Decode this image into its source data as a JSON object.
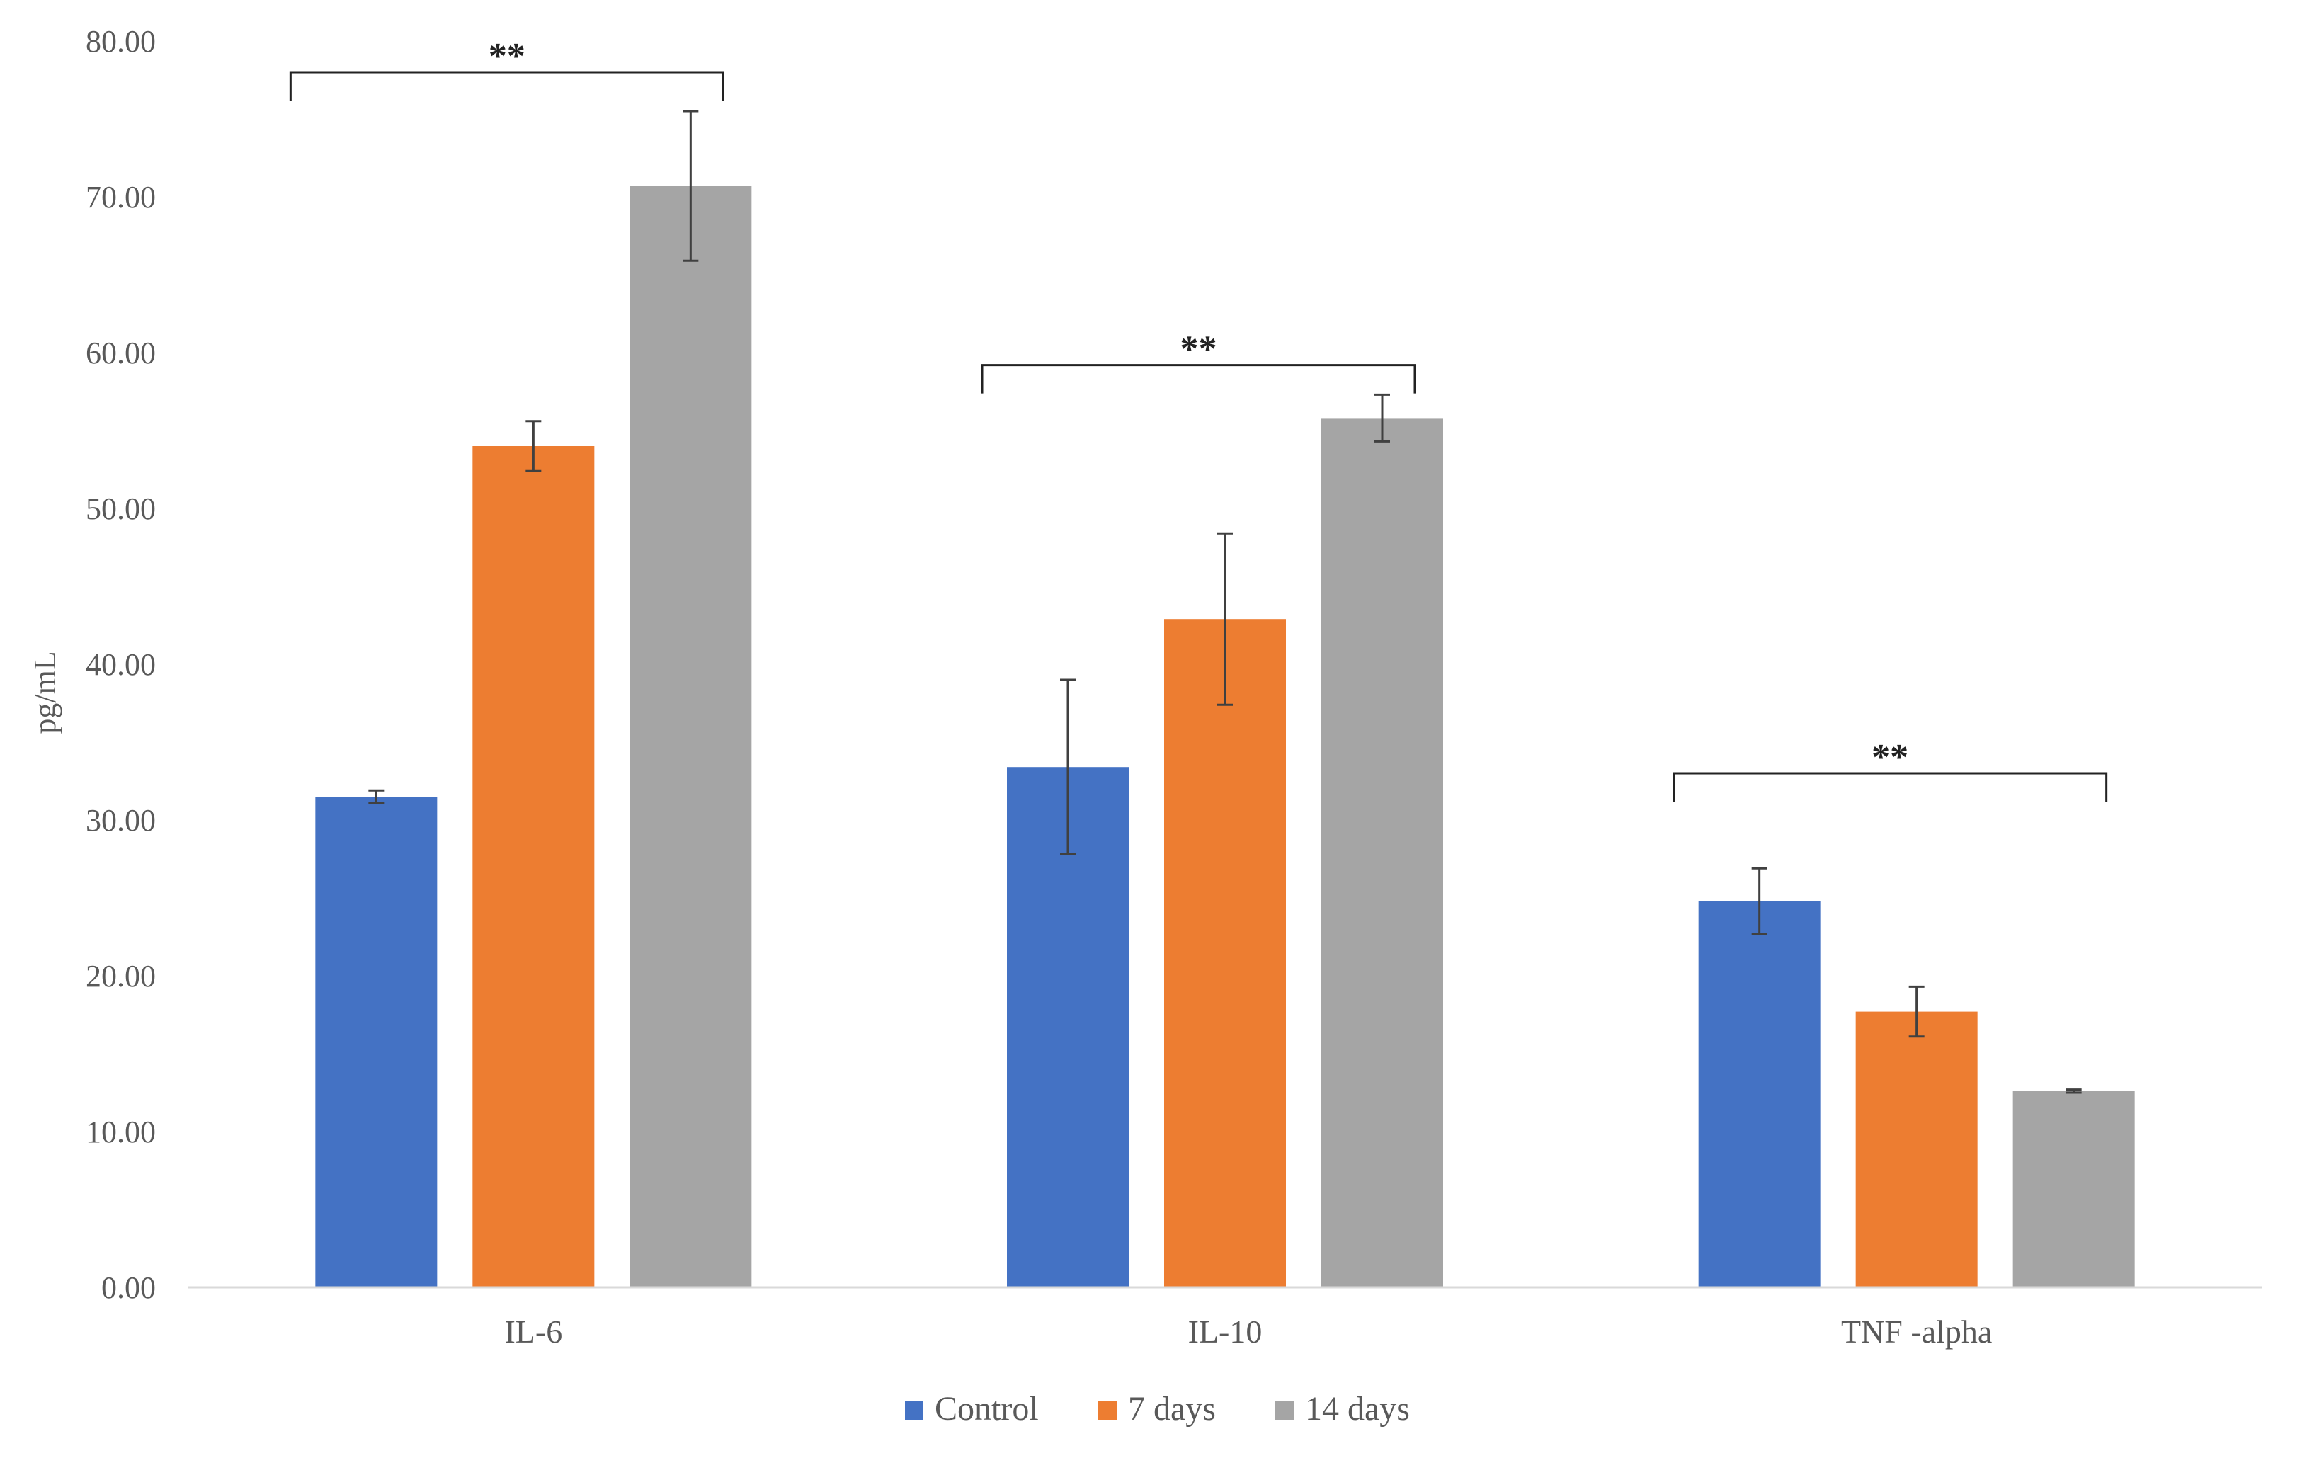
{
  "chart_data": {
    "type": "bar",
    "title": "",
    "xlabel": "",
    "ylabel": "pg/mL",
    "ylim": [
      0,
      80
    ],
    "yticks": [
      0,
      10,
      20,
      30,
      40,
      50,
      60,
      70,
      80
    ],
    "ytick_labels": [
      "0.00",
      "10.00",
      "20.00",
      "30.00",
      "40.00",
      "50.00",
      "60.00",
      "70.00",
      "80.00"
    ],
    "grid": false,
    "legend_position": "bottom-center",
    "categories": [
      "IL-6",
      "IL-10",
      "TNF -alpha"
    ],
    "series": [
      {
        "name": "Control",
        "color": "#4472C4",
        "values": [
          31.5,
          33.4,
          24.8
        ],
        "errors": [
          0.4,
          5.6,
          2.1
        ]
      },
      {
        "name": "7 days",
        "color": "#ED7D31",
        "values": [
          54.0,
          42.9,
          17.7
        ],
        "errors": [
          1.6,
          5.5,
          1.6
        ]
      },
      {
        "name": "14 days",
        "color": "#A5A5A5",
        "values": [
          70.7,
          55.8,
          12.6
        ],
        "errors": [
          4.8,
          1.5,
          0.1
        ]
      }
    ],
    "annotations": [
      {
        "text": "**",
        "category": "IL-6",
        "from_series": 0,
        "to_series": 2,
        "y": 78
      },
      {
        "text": "**",
        "category": "IL-10",
        "from_series": 0,
        "to_series": 2,
        "y": 59.2
      },
      {
        "text": "**",
        "category": "TNF -alpha",
        "from_series": 0,
        "to_series": 2,
        "y": 33
      }
    ]
  }
}
